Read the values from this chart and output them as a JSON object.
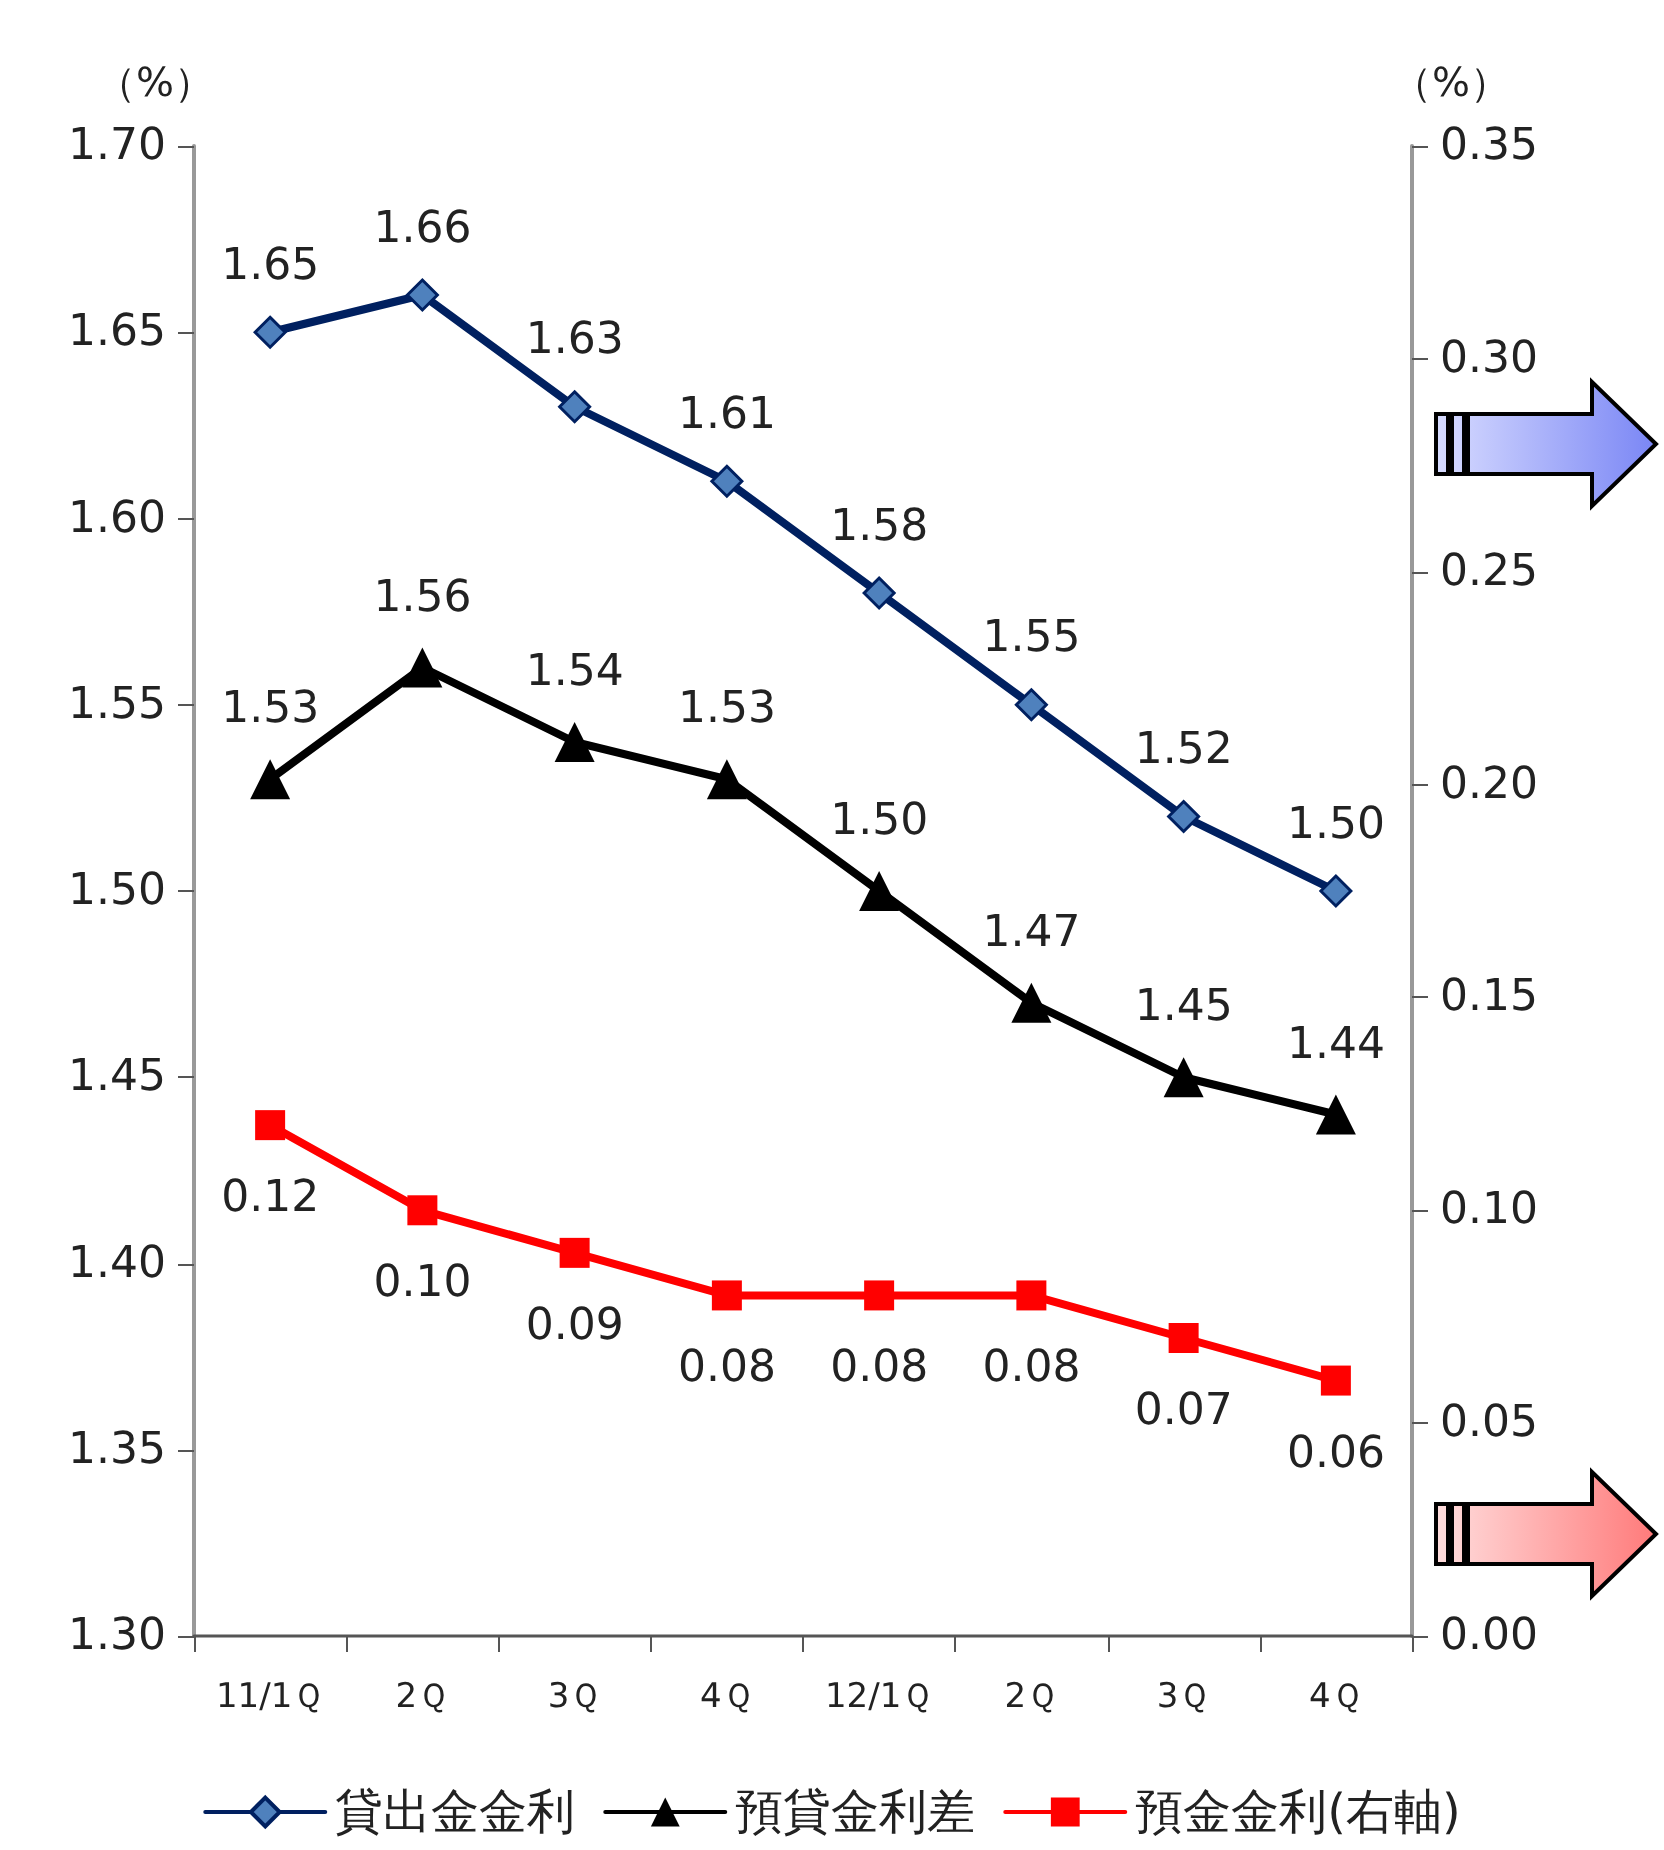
{
  "chart_data": {
    "type": "line",
    "ylabel": "（%）",
    "y2label": "（%）",
    "categories": [
      "11/1Ｑ",
      "2Ｑ",
      "3Ｑ",
      "4Ｑ",
      "12/1Ｑ",
      "2Ｑ",
      "3Ｑ",
      "4Ｑ"
    ],
    "series": [
      {
        "name": "貸出金金利",
        "color": "#002060",
        "marker": "diamond",
        "values": [
          1.65,
          1.66,
          1.63,
          1.61,
          1.58,
          1.55,
          1.52,
          1.5
        ],
        "value_labels": [
          "1.65",
          "1.66",
          "1.63",
          "1.61",
          "1.58",
          "1.55",
          "1.52",
          "1.50"
        ]
      },
      {
        "name": "預貸金利差",
        "color": "#000000",
        "marker": "triangle",
        "values": [
          1.53,
          1.56,
          1.54,
          1.53,
          1.5,
          1.47,
          1.45,
          1.44
        ],
        "value_labels": [
          "1.53",
          "1.56",
          "1.54",
          "1.53",
          "1.50",
          "1.47",
          "1.45",
          "1.44"
        ]
      },
      {
        "name": "預金金利(右軸)",
        "color": "#ff0000",
        "marker": "square",
        "axis": "y2",
        "values": [
          0.12,
          0.1,
          0.09,
          0.08,
          0.08,
          0.08,
          0.07,
          0.06
        ],
        "value_labels": [
          "0.12",
          "0.10",
          "0.09",
          "0.08",
          "0.08",
          "0.08",
          "0.07",
          "0.06"
        ]
      }
    ],
    "ylim": [
      1.3,
      1.7
    ],
    "yticks": [
      {
        "value": 1.3,
        "label": "1.30"
      },
      {
        "value": 1.35,
        "label": "1.35"
      },
      {
        "value": 1.4,
        "label": "1.40"
      },
      {
        "value": 1.45,
        "label": "1.45"
      },
      {
        "value": 1.5,
        "label": "1.50"
      },
      {
        "value": 1.55,
        "label": "1.55"
      },
      {
        "value": 1.6,
        "label": "1.60"
      },
      {
        "value": 1.65,
        "label": "1.65"
      },
      {
        "value": 1.7,
        "label": "1.70"
      }
    ],
    "y2lim": [
      0,
      0.35
    ],
    "y2ticks": [
      {
        "value": 0,
        "label": "0.00"
      },
      {
        "value": 0.05,
        "label": "0.05"
      },
      {
        "value": 0.1,
        "label": "0.10"
      },
      {
        "value": 0.15,
        "label": "0.15"
      },
      {
        "value": 0.2,
        "label": "0.20"
      },
      {
        "value": 0.25,
        "label": "0.25"
      },
      {
        "value": 0.3,
        "label": "0.30"
      },
      {
        "value": 0.35,
        "label": "0.35"
      }
    ],
    "grid": false,
    "legend": "bottom",
    "line_style": "solid"
  }
}
